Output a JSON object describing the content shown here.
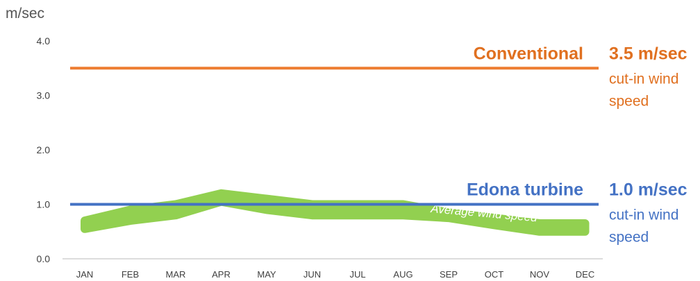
{
  "chart_data": {
    "type": "line",
    "unit_label": "m/sec",
    "categories": [
      "JAN",
      "FEB",
      "MAR",
      "APR",
      "MAY",
      "JUN",
      "JUL",
      "AUG",
      "SEP",
      "OCT",
      "NOV",
      "DEC"
    ],
    "yticks": [
      "0.0",
      "1.0",
      "2.0",
      "3.0",
      "4.0"
    ],
    "ylim": [
      0,
      4
    ],
    "grid": false,
    "average_wind_speed": {
      "label": "Average wind speed",
      "color": "#92D050",
      "upper": [
        0.7,
        0.9,
        1.0,
        1.2,
        1.1,
        1.0,
        1.0,
        1.0,
        0.85,
        0.75,
        0.65,
        0.65
      ],
      "lower": [
        0.55,
        0.7,
        0.8,
        1.05,
        0.9,
        0.8,
        0.8,
        0.8,
        0.75,
        0.62,
        0.5,
        0.5
      ]
    },
    "reference_lines": [
      {
        "name": "Conventional",
        "value": 3.5,
        "value_label": "3.5 m/sec",
        "note_line1": "cut-in wind",
        "note_line2": "speed",
        "color": "#ED7D31",
        "text_color": "#E07020"
      },
      {
        "name": "Edona turbine",
        "value": 1.0,
        "value_label": "1.0 m/sec",
        "note_line1": "cut-in wind",
        "note_line2": "speed",
        "color": "#4472C4",
        "text_color": "#4472C4"
      }
    ]
  }
}
